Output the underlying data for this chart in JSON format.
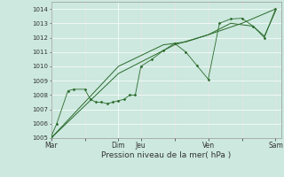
{
  "xlabel": "Pression niveau de la mer( hPa )",
  "bg_color": "#cce8df",
  "plot_bg_color": "#cce8df",
  "grid_color_major": "#b0d8ce",
  "grid_color_minor": "#d8eee8",
  "line_color": "#2a6b2a",
  "marker_color": "#2a6b2a",
  "ylim": [
    1005,
    1014.5
  ],
  "yticks": [
    1005,
    1006,
    1007,
    1008,
    1009,
    1010,
    1011,
    1012,
    1013,
    1014
  ],
  "xtick_labels": [
    "Mar",
    "",
    "Dim",
    "Jeu",
    "",
    "Ven",
    "",
    "Sam"
  ],
  "xtick_positions": [
    0,
    3,
    6,
    8,
    11,
    14,
    17,
    20
  ],
  "vline_positions": [
    3,
    8,
    11,
    14,
    17,
    20
  ],
  "series1_x": [
    0,
    0.5,
    1.5,
    2,
    3,
    3.5,
    4,
    4.5,
    5,
    5.5,
    6,
    6.5,
    7,
    7.5,
    8,
    9,
    10,
    11,
    12,
    13,
    14,
    15,
    16,
    17,
    18,
    19,
    20
  ],
  "series1_y": [
    1005.1,
    1006.0,
    1008.3,
    1008.4,
    1008.4,
    1007.7,
    1007.5,
    1007.5,
    1007.4,
    1007.5,
    1007.6,
    1007.7,
    1008.0,
    1008.0,
    1010.0,
    1010.5,
    1011.1,
    1011.6,
    1011.0,
    1010.05,
    1009.1,
    1013.0,
    1013.3,
    1013.35,
    1012.8,
    1012.0,
    1014.0
  ],
  "series2_x": [
    0,
    6,
    11,
    14,
    17,
    20
  ],
  "series2_y": [
    1005.0,
    1009.5,
    1011.5,
    1012.2,
    1013.0,
    1014.0
  ],
  "series3_x": [
    0,
    6,
    10,
    12,
    14,
    16,
    18,
    19,
    20
  ],
  "series3_y": [
    1005.0,
    1010.0,
    1011.5,
    1011.7,
    1012.2,
    1013.0,
    1012.8,
    1012.1,
    1013.85
  ],
  "xlim": [
    0,
    20.5
  ]
}
